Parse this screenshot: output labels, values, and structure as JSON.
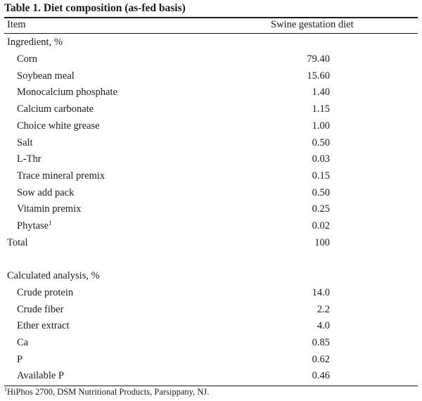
{
  "table": {
    "title": "Table 1. Diet composition (as-fed basis)",
    "header": {
      "item": "Item",
      "diet": "Swine gestation diet"
    },
    "ingredients_heading": "Ingredient, %",
    "ingredients": [
      {
        "label": "Corn",
        "value": "79.40"
      },
      {
        "label": "Soybean meal",
        "value": "15.60"
      },
      {
        "label": "Monocalcium phosphate",
        "value": "1.40"
      },
      {
        "label": "Calcium carbonate",
        "value": "1.15"
      },
      {
        "label": "Choice white grease",
        "value": "1.00"
      },
      {
        "label": "Salt",
        "value": "0.50"
      },
      {
        "label": "L-Thr",
        "value": "0.03"
      },
      {
        "label": "Trace mineral premix",
        "value": "0.15"
      },
      {
        "label": "Sow add pack",
        "value": "0.50"
      },
      {
        "label": "Vitamin premix",
        "value": "0.25"
      },
      {
        "label": "Phytase",
        "footnote_mark": "1",
        "value": "0.02"
      }
    ],
    "total": {
      "label": "Total",
      "value": "100"
    },
    "analysis_heading": "Calculated analysis, %",
    "analysis": [
      {
        "label": "Crude protein",
        "value": "14.0"
      },
      {
        "label": "Crude fiber",
        "value": "2.2"
      },
      {
        "label": "Ether extract",
        "value": "4.0"
      },
      {
        "label": "Ca",
        "value": "0.85"
      },
      {
        "label": "P",
        "value": "0.62"
      },
      {
        "label": "Available P",
        "value": "0.46"
      }
    ],
    "footnote": {
      "mark": "1",
      "text": "HiPhos 2700, DSM Nutritional Products, Parsippany, NJ."
    }
  }
}
